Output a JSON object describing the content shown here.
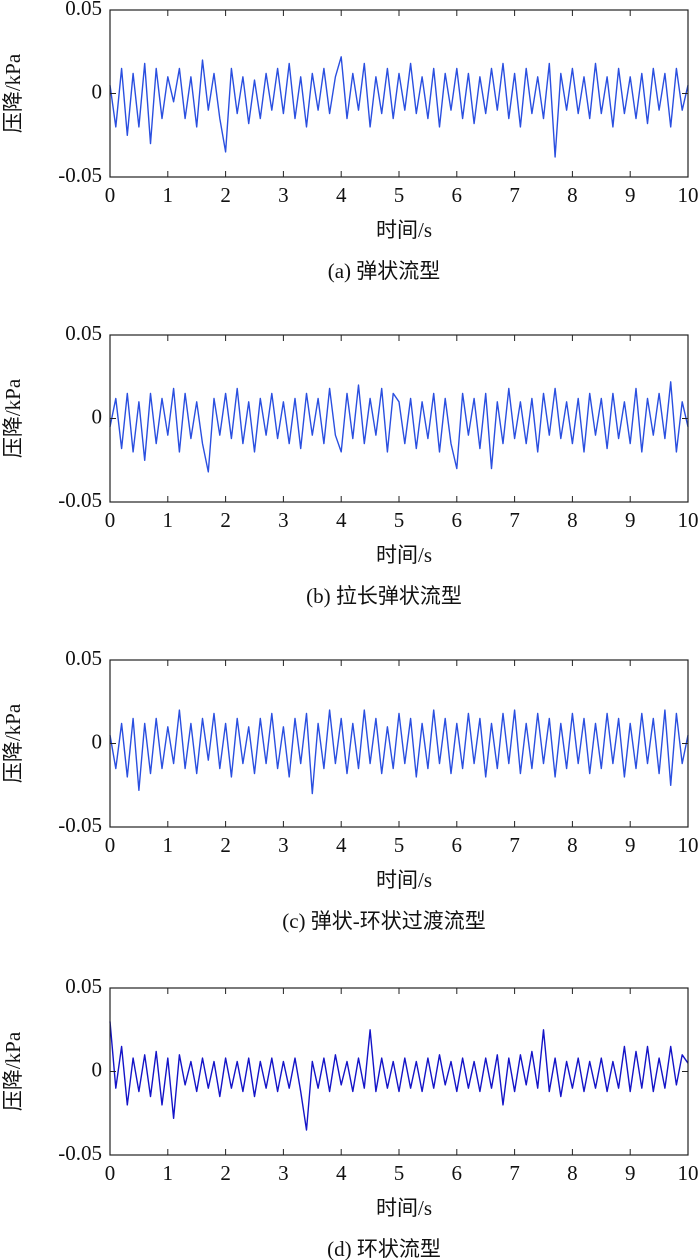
{
  "chart_data": [
    {
      "type": "line",
      "title": "(a) 弹状流型",
      "xlabel": "时间/s",
      "ylabel": "压降/kPa",
      "color": "#2a4fe0",
      "xlim": [
        0,
        10
      ],
      "xticks": [
        0,
        1,
        2,
        3,
        4,
        5,
        6,
        7,
        8,
        9,
        10
      ],
      "ylim": [
        -0.05,
        0.05
      ],
      "yticks": [
        -0.05,
        0,
        0.05
      ],
      "x": [
        0,
        0.1,
        0.2,
        0.3,
        0.4,
        0.5,
        0.6,
        0.7,
        0.8,
        0.9,
        1,
        1.1,
        1.2,
        1.3,
        1.4,
        1.5,
        1.6,
        1.7,
        1.8,
        1.9,
        2,
        2.1,
        2.2,
        2.3,
        2.4,
        2.5,
        2.6,
        2.7,
        2.8,
        2.9,
        3,
        3.1,
        3.2,
        3.3,
        3.4,
        3.5,
        3.6,
        3.7,
        3.8,
        3.9,
        4,
        4.1,
        4.2,
        4.3,
        4.4,
        4.5,
        4.6,
        4.7,
        4.8,
        4.9,
        5,
        5.1,
        5.2,
        5.3,
        5.4,
        5.5,
        5.6,
        5.7,
        5.8,
        5.9,
        6,
        6.1,
        6.2,
        6.3,
        6.4,
        6.5,
        6.6,
        6.7,
        6.8,
        6.9,
        7,
        7.1,
        7.2,
        7.3,
        7.4,
        7.5,
        7.6,
        7.7,
        7.8,
        7.9,
        8,
        8.1,
        8.2,
        8.3,
        8.4,
        8.5,
        8.6,
        8.7,
        8.8,
        8.9,
        9,
        9.1,
        9.2,
        9.3,
        9.4,
        9.5,
        9.6,
        9.7,
        9.8,
        9.9,
        10
      ],
      "values": [
        0.005,
        -0.02,
        0.015,
        -0.025,
        0.012,
        -0.02,
        0.018,
        -0.03,
        0.015,
        -0.015,
        0.01,
        -0.005,
        0.015,
        -0.015,
        0.01,
        -0.02,
        0.02,
        -0.01,
        0.012,
        -0.015,
        -0.035,
        0.015,
        -0.012,
        0.01,
        -0.018,
        0.008,
        -0.015,
        0.012,
        -0.01,
        0.015,
        -0.012,
        0.018,
        -0.015,
        0.01,
        -0.02,
        0.012,
        -0.01,
        0.015,
        -0.012,
        0.01,
        0.022,
        -0.015,
        0.012,
        -0.01,
        0.018,
        -0.02,
        0.01,
        -0.012,
        0.015,
        -0.015,
        0.012,
        -0.01,
        0.018,
        -0.012,
        0.01,
        -0.015,
        0.015,
        -0.02,
        0.012,
        -0.01,
        0.015,
        -0.015,
        0.012,
        -0.018,
        0.01,
        -0.012,
        0.015,
        -0.01,
        0.018,
        -0.015,
        0.012,
        -0.02,
        0.015,
        -0.012,
        0.01,
        -0.015,
        0.018,
        -0.038,
        0.012,
        -0.01,
        0.015,
        -0.012,
        0.01,
        -0.015,
        0.018,
        -0.012,
        0.01,
        -0.02,
        0.015,
        -0.012,
        0.01,
        -0.015,
        0.012,
        -0.018,
        0.015,
        -0.01,
        0.012,
        -0.02,
        0.015,
        -0.01,
        0.005
      ]
    },
    {
      "type": "line",
      "title": "(b) 拉长弹状流型",
      "xlabel": "时间/s",
      "ylabel": "压降/kPa",
      "color": "#2a4fe0",
      "xlim": [
        0,
        10
      ],
      "xticks": [
        0,
        1,
        2,
        3,
        4,
        5,
        6,
        7,
        8,
        9,
        10
      ],
      "ylim": [
        -0.05,
        0.05
      ],
      "yticks": [
        -0.05,
        0,
        0.05
      ],
      "x": [
        0,
        0.1,
        0.2,
        0.3,
        0.4,
        0.5,
        0.6,
        0.7,
        0.8,
        0.9,
        1,
        1.1,
        1.2,
        1.3,
        1.4,
        1.5,
        1.6,
        1.7,
        1.8,
        1.9,
        2,
        2.1,
        2.2,
        2.3,
        2.4,
        2.5,
        2.6,
        2.7,
        2.8,
        2.9,
        3,
        3.1,
        3.2,
        3.3,
        3.4,
        3.5,
        3.6,
        3.7,
        3.8,
        3.9,
        4,
        4.1,
        4.2,
        4.3,
        4.4,
        4.5,
        4.6,
        4.7,
        4.8,
        4.9,
        5,
        5.1,
        5.2,
        5.3,
        5.4,
        5.5,
        5.6,
        5.7,
        5.8,
        5.9,
        6,
        6.1,
        6.2,
        6.3,
        6.4,
        6.5,
        6.6,
        6.7,
        6.8,
        6.9,
        7,
        7.1,
        7.2,
        7.3,
        7.4,
        7.5,
        7.6,
        7.7,
        7.8,
        7.9,
        8,
        8.1,
        8.2,
        8.3,
        8.4,
        8.5,
        8.6,
        8.7,
        8.8,
        8.9,
        9,
        9.1,
        9.2,
        9.3,
        9.4,
        9.5,
        9.6,
        9.7,
        9.8,
        9.9,
        10
      ],
      "values": [
        -0.005,
        0.012,
        -0.018,
        0.015,
        -0.02,
        0.01,
        -0.025,
        0.015,
        -0.015,
        0.012,
        -0.01,
        0.018,
        -0.02,
        0.015,
        -0.012,
        0.01,
        -0.015,
        -0.032,
        0.012,
        -0.01,
        0.015,
        -0.012,
        0.018,
        -0.015,
        0.01,
        -0.02,
        0.012,
        -0.01,
        0.015,
        -0.012,
        0.01,
        -0.015,
        0.012,
        -0.018,
        0.015,
        -0.01,
        0.012,
        -0.015,
        0.018,
        -0.01,
        -0.02,
        0.015,
        -0.012,
        0.02,
        -0.015,
        0.012,
        -0.01,
        0.018,
        -0.02,
        0.015,
        0.01,
        -0.015,
        0.012,
        -0.018,
        0.01,
        -0.012,
        0.015,
        -0.02,
        0.012,
        -0.015,
        -0.03,
        0.015,
        -0.01,
        0.012,
        -0.018,
        0.015,
        -0.03,
        0.01,
        -0.015,
        0.018,
        -0.012,
        0.01,
        -0.015,
        0.012,
        -0.02,
        0.015,
        -0.01,
        0.018,
        -0.012,
        0.01,
        -0.015,
        0.012,
        -0.02,
        0.015,
        -0.01,
        0.012,
        -0.018,
        0.015,
        -0.012,
        0.01,
        -0.015,
        0.018,
        -0.02,
        0.012,
        -0.01,
        0.015,
        -0.012,
        0.022,
        -0.02,
        0.01,
        -0.005
      ]
    },
    {
      "type": "line",
      "title": "(c) 弹状-环状过渡流型",
      "xlabel": "时间/s",
      "ylabel": "压降/kPa",
      "color": "#2a4fe0",
      "xlim": [
        0,
        10
      ],
      "xticks": [
        0,
        1,
        2,
        3,
        4,
        5,
        6,
        7,
        8,
        9,
        10
      ],
      "ylim": [
        -0.05,
        0.05
      ],
      "yticks": [
        -0.05,
        0,
        0.05
      ],
      "x": [
        0,
        0.1,
        0.2,
        0.3,
        0.4,
        0.5,
        0.6,
        0.7,
        0.8,
        0.9,
        1,
        1.1,
        1.2,
        1.3,
        1.4,
        1.5,
        1.6,
        1.7,
        1.8,
        1.9,
        2,
        2.1,
        2.2,
        2.3,
        2.4,
        2.5,
        2.6,
        2.7,
        2.8,
        2.9,
        3,
        3.1,
        3.2,
        3.3,
        3.4,
        3.5,
        3.6,
        3.7,
        3.8,
        3.9,
        4,
        4.1,
        4.2,
        4.3,
        4.4,
        4.5,
        4.6,
        4.7,
        4.8,
        4.9,
        5,
        5.1,
        5.2,
        5.3,
        5.4,
        5.5,
        5.6,
        5.7,
        5.8,
        5.9,
        6,
        6.1,
        6.2,
        6.3,
        6.4,
        6.5,
        6.6,
        6.7,
        6.8,
        6.9,
        7,
        7.1,
        7.2,
        7.3,
        7.4,
        7.5,
        7.6,
        7.7,
        7.8,
        7.9,
        8,
        8.1,
        8.2,
        8.3,
        8.4,
        8.5,
        8.6,
        8.7,
        8.8,
        8.9,
        9,
        9.1,
        9.2,
        9.3,
        9.4,
        9.5,
        9.6,
        9.7,
        9.8,
        9.9,
        10
      ],
      "values": [
        0.005,
        -0.015,
        0.012,
        -0.02,
        0.015,
        -0.028,
        0.012,
        -0.018,
        0.015,
        -0.015,
        0.01,
        -0.012,
        0.02,
        -0.015,
        0.012,
        -0.018,
        0.015,
        -0.01,
        0.018,
        -0.015,
        0.012,
        -0.02,
        0.015,
        -0.012,
        0.01,
        -0.018,
        0.015,
        -0.012,
        0.018,
        -0.015,
        0.01,
        -0.02,
        0.015,
        -0.012,
        0.018,
        -0.03,
        0.012,
        -0.015,
        0.02,
        -0.012,
        0.015,
        -0.018,
        0.012,
        -0.015,
        0.02,
        -0.012,
        0.015,
        -0.018,
        0.01,
        -0.015,
        0.018,
        -0.012,
        0.015,
        -0.02,
        0.012,
        -0.015,
        0.02,
        -0.012,
        0.015,
        -0.018,
        0.012,
        -0.015,
        0.018,
        -0.012,
        0.015,
        -0.02,
        0.012,
        -0.015,
        0.018,
        -0.012,
        0.02,
        -0.018,
        0.012,
        -0.015,
        0.018,
        -0.012,
        0.015,
        -0.02,
        0.012,
        -0.015,
        0.018,
        -0.012,
        0.015,
        -0.018,
        0.012,
        -0.015,
        0.018,
        -0.012,
        0.015,
        -0.02,
        0.012,
        -0.015,
        0.018,
        -0.012,
        0.015,
        -0.018,
        0.02,
        -0.025,
        0.018,
        -0.012,
        0.005
      ]
    },
    {
      "type": "line",
      "title": "(d) 环状流型",
      "xlabel": "时间/s",
      "ylabel": "压降/kPa",
      "color": "#1414c8",
      "xlim": [
        0,
        10
      ],
      "xticks": [
        0,
        1,
        2,
        3,
        4,
        5,
        6,
        7,
        8,
        9,
        10
      ],
      "ylim": [
        -0.05,
        0.05
      ],
      "yticks": [
        -0.05,
        0,
        0.05
      ],
      "x": [
        0,
        0.1,
        0.2,
        0.3,
        0.4,
        0.5,
        0.6,
        0.7,
        0.8,
        0.9,
        1,
        1.1,
        1.2,
        1.3,
        1.4,
        1.5,
        1.6,
        1.7,
        1.8,
        1.9,
        2,
        2.1,
        2.2,
        2.3,
        2.4,
        2.5,
        2.6,
        2.7,
        2.8,
        2.9,
        3,
        3.1,
        3.2,
        3.3,
        3.4,
        3.5,
        3.6,
        3.7,
        3.8,
        3.9,
        4,
        4.1,
        4.2,
        4.3,
        4.4,
        4.5,
        4.6,
        4.7,
        4.8,
        4.9,
        5,
        5.1,
        5.2,
        5.3,
        5.4,
        5.5,
        5.6,
        5.7,
        5.8,
        5.9,
        6,
        6.1,
        6.2,
        6.3,
        6.4,
        6.5,
        6.6,
        6.7,
        6.8,
        6.9,
        7,
        7.1,
        7.2,
        7.3,
        7.4,
        7.5,
        7.6,
        7.7,
        7.8,
        7.9,
        8,
        8.1,
        8.2,
        8.3,
        8.4,
        8.5,
        8.6,
        8.7,
        8.8,
        8.9,
        9,
        9.1,
        9.2,
        9.3,
        9.4,
        9.5,
        9.6,
        9.7,
        9.8,
        9.9,
        10
      ],
      "values": [
        0.03,
        -0.01,
        0.015,
        -0.02,
        0.008,
        -0.012,
        0.01,
        -0.015,
        0.012,
        -0.02,
        0.008,
        -0.028,
        0.01,
        -0.008,
        0.006,
        -0.012,
        0.008,
        -0.01,
        0.006,
        -0.015,
        0.008,
        -0.01,
        0.006,
        -0.012,
        0.008,
        -0.015,
        0.006,
        -0.01,
        0.008,
        -0.012,
        0.006,
        -0.01,
        0.008,
        -0.012,
        -0.035,
        0.006,
        -0.01,
        0.008,
        -0.012,
        0.01,
        -0.008,
        0.006,
        -0.012,
        0.008,
        -0.01,
        0.025,
        -0.012,
        0.008,
        -0.01,
        0.006,
        -0.012,
        0.008,
        -0.01,
        0.006,
        -0.012,
        0.008,
        -0.01,
        0.01,
        -0.008,
        0.006,
        -0.012,
        0.008,
        -0.01,
        0.006,
        -0.012,
        0.008,
        -0.01,
        0.01,
        -0.02,
        0.008,
        -0.012,
        0.01,
        -0.008,
        0.012,
        -0.01,
        0.025,
        -0.012,
        0.008,
        -0.015,
        0.006,
        -0.01,
        0.008,
        -0.012,
        0.006,
        -0.01,
        0.008,
        -0.012,
        0.006,
        -0.01,
        0.015,
        -0.012,
        0.012,
        -0.01,
        0.015,
        -0.012,
        0.008,
        -0.01,
        0.015,
        -0.008,
        0.01,
        0.005
      ]
    }
  ]
}
